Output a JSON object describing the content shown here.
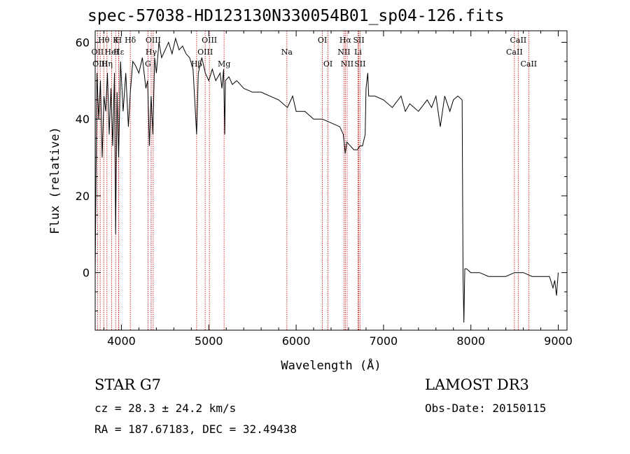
{
  "chart_data": {
    "type": "line",
    "title": "spec-57038-HD123130N330054B01_sp04-126.fits",
    "xlabel": "Wavelength (Å)",
    "ylabel": "Flux (relative)",
    "xlim": [
      3700,
      9100
    ],
    "ylim": [
      -15,
      63
    ],
    "xticks": [
      4000,
      5000,
      6000,
      7000,
      8000,
      9000
    ],
    "yticks": [
      0,
      20,
      40,
      60
    ],
    "xtick_labels": [
      "4000",
      "5000",
      "6000",
      "7000",
      "8000",
      "9000"
    ],
    "ytick_labels": [
      "0",
      "20",
      "40",
      "60"
    ],
    "series": [
      {
        "name": "spectrum",
        "x": [
          3700,
          3720,
          3740,
          3760,
          3780,
          3800,
          3820,
          3840,
          3860,
          3880,
          3900,
          3920,
          3934,
          3950,
          3968,
          3990,
          4020,
          4050,
          4080,
          4102,
          4130,
          4160,
          4200,
          4240,
          4280,
          4300,
          4320,
          4340,
          4360,
          4380,
          4400,
          4430,
          4460,
          4500,
          4540,
          4580,
          4620,
          4660,
          4700,
          4740,
          4780,
          4820,
          4861,
          4880,
          4920,
          4960,
          5000,
          5040,
          5080,
          5130,
          5150,
          5170,
          5183,
          5190,
          5230,
          5270,
          5320,
          5400,
          5500,
          5600,
          5700,
          5800,
          5900,
          5960,
          6000,
          6100,
          6200,
          6300,
          6400,
          6500,
          6540,
          6563,
          6580,
          6620,
          6660,
          6700,
          6730,
          6760,
          6790,
          6800,
          6820,
          6830,
          6900,
          7000,
          7100,
          7200,
          7250,
          7300,
          7400,
          7500,
          7550,
          7600,
          7650,
          7700,
          7760,
          7800,
          7850,
          7900,
          7910,
          7920,
          7930,
          7950,
          8000,
          8100,
          8200,
          8300,
          8400,
          8500,
          8600,
          8700,
          8800,
          8900,
          8940,
          8960,
          8980,
          9000
        ],
        "values": [
          0,
          52,
          40,
          50,
          30,
          46,
          42,
          52,
          36,
          48,
          33,
          52,
          10,
          47,
          30,
          55,
          42,
          52,
          38,
          47,
          55,
          54,
          52,
          56,
          48,
          50,
          33,
          46,
          36,
          56,
          52,
          60,
          56,
          58,
          60,
          57,
          61,
          58,
          59,
          57,
          56,
          53,
          36,
          52,
          56,
          52,
          50,
          53,
          50,
          52,
          48,
          53,
          36,
          50,
          51,
          49,
          50,
          48,
          47,
          47,
          46,
          45,
          43,
          46,
          42,
          42,
          40,
          40,
          39,
          38,
          36,
          31,
          34,
          33,
          32,
          32,
          33,
          33,
          36,
          48,
          52,
          46,
          46,
          45,
          43,
          46,
          42,
          44,
          42,
          45,
          43,
          46,
          38,
          46,
          42,
          45,
          46,
          45,
          -1,
          -13,
          1,
          1,
          0,
          0,
          -1,
          -1,
          -1,
          0,
          0,
          -1,
          -1,
          -1,
          -4,
          -2,
          -6,
          0
        ]
      }
    ],
    "line_markers": [
      {
        "label": "Hθ",
        "x": 3798,
        "row": 1
      },
      {
        "label": "OII",
        "x": 3727,
        "row": 2
      },
      {
        "label": "OIII",
        "x": 3757,
        "row": 3
      },
      {
        "label": "Hη",
        "x": 3835,
        "row": 3
      },
      {
        "label": "HeI",
        "x": 3889,
        "row": 2
      },
      {
        "label": "K",
        "x": 3934,
        "row": 1
      },
      {
        "label": "H",
        "x": 3968,
        "row": 1
      },
      {
        "label": "Hε",
        "x": 3970,
        "row": 2
      },
      {
        "label": "Hδ",
        "x": 4102,
        "row": 1
      },
      {
        "label": "G",
        "x": 4304,
        "row": 3
      },
      {
        "label": "Hγ",
        "x": 4341,
        "row": 2
      },
      {
        "label": "OIII",
        "x": 4364,
        "row": 1
      },
      {
        "label": "Hβ",
        "x": 4861,
        "row": 3
      },
      {
        "label": "OIII",
        "x": 4959,
        "row": 2
      },
      {
        "label": "OIII",
        "x": 5007,
        "row": 1
      },
      {
        "label": "Mg",
        "x": 5175,
        "row": 3
      },
      {
        "label": "Na",
        "x": 5894,
        "row": 2
      },
      {
        "label": "OI",
        "x": 6300,
        "row": 1
      },
      {
        "label": "OI",
        "x": 6364,
        "row": 3
      },
      {
        "label": "NII",
        "x": 6548,
        "row": 2
      },
      {
        "label": "Hα",
        "x": 6563,
        "row": 1
      },
      {
        "label": "NII",
        "x": 6584,
        "row": 3
      },
      {
        "label": "Li",
        "x": 6708,
        "row": 2
      },
      {
        "label": "SII",
        "x": 6717,
        "row": 1
      },
      {
        "label": "SII",
        "x": 6731,
        "row": 3
      },
      {
        "label": "CaII",
        "x": 8498,
        "row": 2
      },
      {
        "label": "CaII",
        "x": 8542,
        "row": 1
      },
      {
        "label": "CaII",
        "x": 8662,
        "row": 3
      }
    ],
    "colors": {
      "spectrum": "#000000",
      "markers": "#cc0000"
    }
  },
  "info": {
    "class_line": "STAR    G7",
    "survey": "LAMOST DR3",
    "cz": "cz = 28.3 ± 24.2 km/s",
    "obs_date": "Obs-Date: 20150115",
    "coords": "RA = 187.67183, DEC =  32.49438"
  }
}
